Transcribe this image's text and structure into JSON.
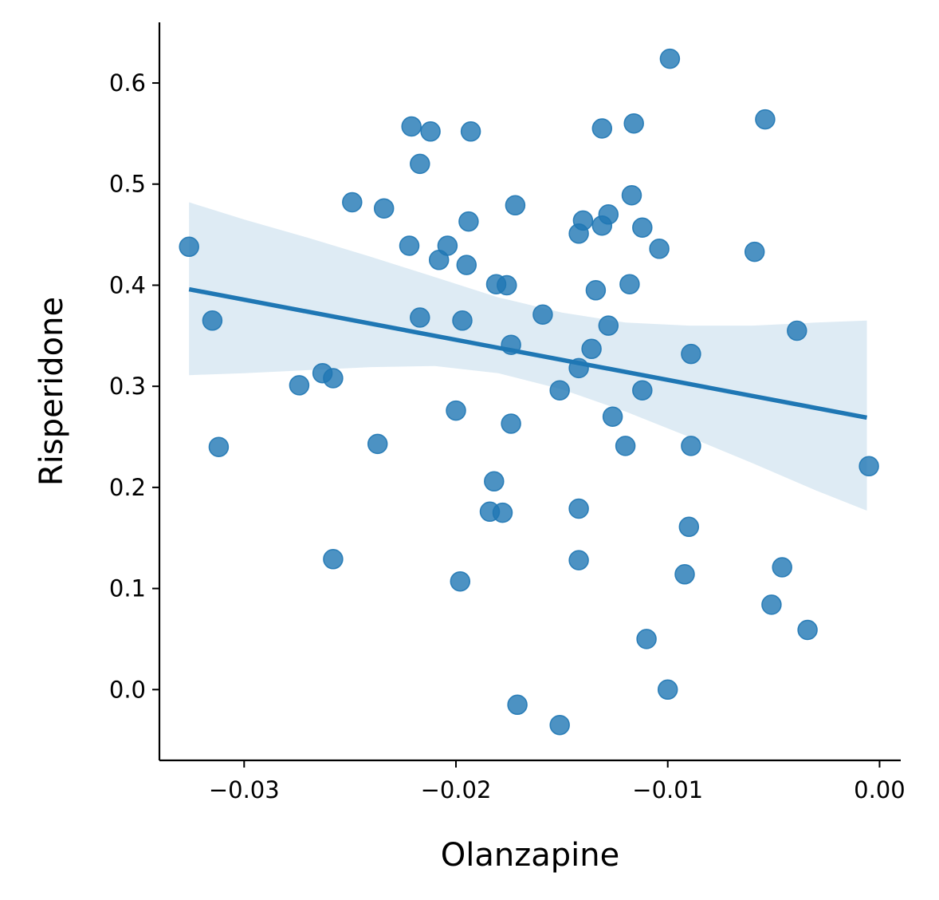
{
  "chart_data": {
    "type": "scatter",
    "title": "",
    "xlabel": "Olanzapine",
    "ylabel": "Risperidone",
    "xlim": [
      -0.034,
      0.001
    ],
    "ylim": [
      -0.07,
      0.66
    ],
    "xticks": [
      -0.03,
      -0.02,
      -0.01,
      0.0
    ],
    "xtick_labels": [
      "−0.03",
      "−0.02",
      "−0.01",
      "0.00"
    ],
    "yticks": [
      0.0,
      0.1,
      0.2,
      0.3,
      0.4,
      0.5,
      0.6
    ],
    "ytick_labels": [
      "0.0",
      "0.1",
      "0.2",
      "0.3",
      "0.4",
      "0.5",
      "0.6"
    ],
    "grid": false,
    "color": "#1f77b4",
    "regression": {
      "x": [
        -0.0326,
        -0.0006
      ],
      "y": [
        0.396,
        0.269
      ],
      "ci_x": [
        -0.0326,
        -0.03,
        -0.027,
        -0.024,
        -0.021,
        -0.018,
        -0.015,
        -0.012,
        -0.009,
        -0.006,
        -0.003,
        -0.0006
      ],
      "ci_upper": [
        0.482,
        0.465,
        0.447,
        0.428,
        0.408,
        0.388,
        0.373,
        0.363,
        0.36,
        0.36,
        0.363,
        0.365
      ],
      "ci_lower": [
        0.311,
        0.313,
        0.316,
        0.319,
        0.32,
        0.313,
        0.297,
        0.275,
        0.25,
        0.224,
        0.197,
        0.177
      ]
    },
    "points": [
      {
        "x": -0.0326,
        "y": 0.438
      },
      {
        "x": -0.0315,
        "y": 0.365
      },
      {
        "x": -0.0312,
        "y": 0.24
      },
      {
        "x": -0.0274,
        "y": 0.301
      },
      {
        "x": -0.0263,
        "y": 0.313
      },
      {
        "x": -0.0258,
        "y": 0.308
      },
      {
        "x": -0.0258,
        "y": 0.129
      },
      {
        "x": -0.0249,
        "y": 0.482
      },
      {
        "x": -0.0237,
        "y": 0.243
      },
      {
        "x": -0.0234,
        "y": 0.476
      },
      {
        "x": -0.0222,
        "y": 0.439
      },
      {
        "x": -0.0221,
        "y": 0.557
      },
      {
        "x": -0.0217,
        "y": 0.52
      },
      {
        "x": -0.0217,
        "y": 0.368
      },
      {
        "x": -0.0212,
        "y": 0.552
      },
      {
        "x": -0.0208,
        "y": 0.425
      },
      {
        "x": -0.0204,
        "y": 0.439
      },
      {
        "x": -0.02,
        "y": 0.276
      },
      {
        "x": -0.0198,
        "y": 0.107
      },
      {
        "x": -0.0197,
        "y": 0.365
      },
      {
        "x": -0.0195,
        "y": 0.42
      },
      {
        "x": -0.0194,
        "y": 0.463
      },
      {
        "x": -0.0193,
        "y": 0.552
      },
      {
        "x": -0.0184,
        "y": 0.176
      },
      {
        "x": -0.0182,
        "y": 0.206
      },
      {
        "x": -0.0181,
        "y": 0.401
      },
      {
        "x": -0.0178,
        "y": 0.175
      },
      {
        "x": -0.0176,
        "y": 0.4
      },
      {
        "x": -0.0174,
        "y": 0.341
      },
      {
        "x": -0.0174,
        "y": 0.263
      },
      {
        "x": -0.0172,
        "y": 0.479
      },
      {
        "x": -0.0171,
        "y": -0.015
      },
      {
        "x": -0.0159,
        "y": 0.371
      },
      {
        "x": -0.0151,
        "y": 0.296
      },
      {
        "x": -0.0151,
        "y": -0.035
      },
      {
        "x": -0.0142,
        "y": 0.451
      },
      {
        "x": -0.0142,
        "y": 0.318
      },
      {
        "x": -0.0142,
        "y": 0.179
      },
      {
        "x": -0.0142,
        "y": 0.128
      },
      {
        "x": -0.014,
        "y": 0.464
      },
      {
        "x": -0.0136,
        "y": 0.337
      },
      {
        "x": -0.0134,
        "y": 0.395
      },
      {
        "x": -0.0131,
        "y": 0.555
      },
      {
        "x": -0.0131,
        "y": 0.459
      },
      {
        "x": -0.0128,
        "y": 0.47
      },
      {
        "x": -0.0128,
        "y": 0.36
      },
      {
        "x": -0.0126,
        "y": 0.27
      },
      {
        "x": -0.012,
        "y": 0.241
      },
      {
        "x": -0.0118,
        "y": 0.401
      },
      {
        "x": -0.0117,
        "y": 0.489
      },
      {
        "x": -0.0116,
        "y": 0.56
      },
      {
        "x": -0.0112,
        "y": 0.457
      },
      {
        "x": -0.0112,
        "y": 0.296
      },
      {
        "x": -0.011,
        "y": 0.05
      },
      {
        "x": -0.0104,
        "y": 0.436
      },
      {
        "x": -0.01,
        "y": 0.0
      },
      {
        "x": -0.0099,
        "y": 0.624
      },
      {
        "x": -0.0092,
        "y": 0.114
      },
      {
        "x": -0.009,
        "y": 0.161
      },
      {
        "x": -0.0089,
        "y": 0.332
      },
      {
        "x": -0.0089,
        "y": 0.241
      },
      {
        "x": -0.0059,
        "y": 0.433
      },
      {
        "x": -0.0054,
        "y": 0.564
      },
      {
        "x": -0.0051,
        "y": 0.084
      },
      {
        "x": -0.0046,
        "y": 0.121
      },
      {
        "x": -0.0039,
        "y": 0.355
      },
      {
        "x": -0.0034,
        "y": 0.059
      },
      {
        "x": -0.0005,
        "y": 0.221
      }
    ]
  }
}
